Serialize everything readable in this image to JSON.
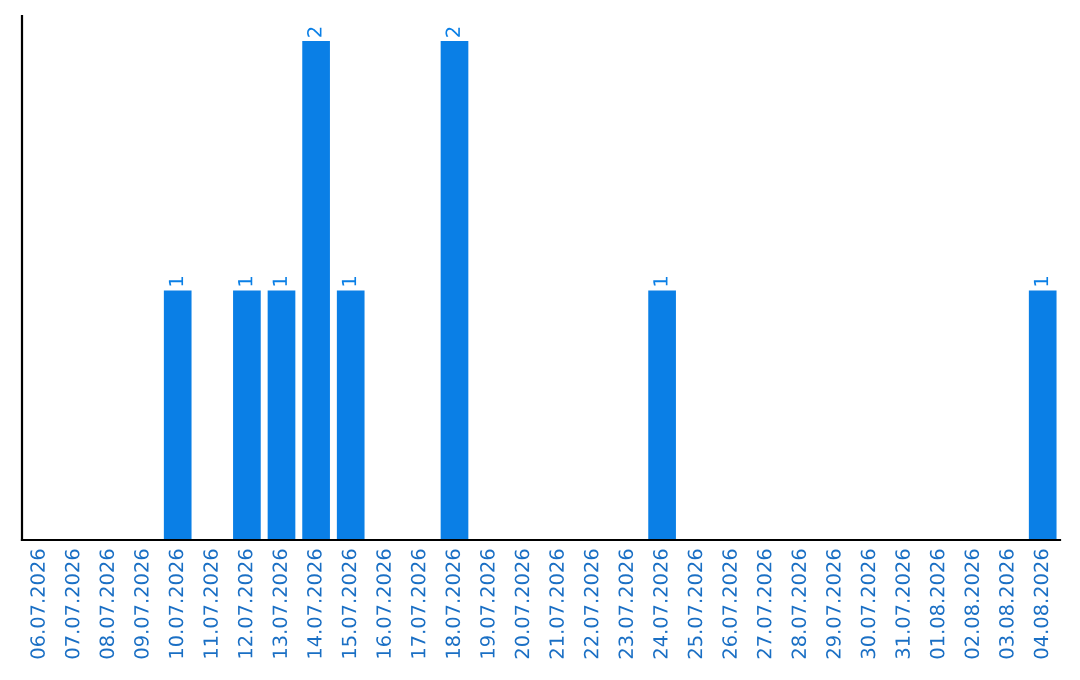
{
  "chart_data": {
    "type": "bar",
    "categories": [
      "06.07.2026",
      "07.07.2026",
      "08.07.2026",
      "09.07.2026",
      "10.07.2026",
      "11.07.2026",
      "12.07.2026",
      "13.07.2026",
      "14.07.2026",
      "15.07.2026",
      "16.07.2026",
      "17.07.2026",
      "18.07.2026",
      "19.07.2026",
      "20.07.2026",
      "21.07.2026",
      "22.07.2026",
      "23.07.2026",
      "24.07.2026",
      "25.07.2026",
      "26.07.2026",
      "27.07.2026",
      "28.07.2026",
      "29.07.2026",
      "30.07.2026",
      "31.07.2026",
      "01.08.2026",
      "02.08.2026",
      "03.08.2026",
      "04.08.2026"
    ],
    "values": [
      0,
      0,
      0,
      0,
      1,
      0,
      1,
      1,
      2,
      1,
      0,
      0,
      2,
      0,
      0,
      0,
      0,
      0,
      1,
      0,
      0,
      0,
      0,
      0,
      0,
      0,
      0,
      0,
      0,
      1
    ],
    "value_labels": [
      null,
      null,
      null,
      null,
      "1",
      null,
      "1",
      "1",
      "2",
      "1",
      null,
      null,
      "2",
      null,
      null,
      null,
      null,
      null,
      "1",
      null,
      null,
      null,
      null,
      null,
      null,
      null,
      null,
      null,
      null,
      "1"
    ],
    "color": "#0a7fe6",
    "tick_labels": "x",
    "grid": false,
    "legend": false
  }
}
